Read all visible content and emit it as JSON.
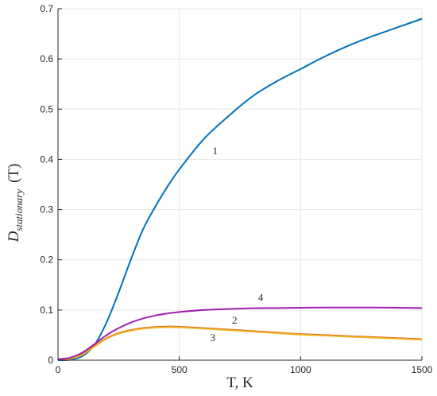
{
  "chart_data": {
    "type": "line",
    "xlabel": "T, K",
    "ylabel": {
      "main": "D",
      "subscript": "stationary",
      "suffix": "(T)"
    },
    "xlim": [
      0,
      1500
    ],
    "ylim": [
      0,
      0.7
    ],
    "xticks": [
      "0",
      "500",
      "1000",
      "1500"
    ],
    "yticks": [
      "0",
      "0.1",
      "0.2",
      "0.3",
      "0.4",
      "0.5",
      "0.6",
      "0.7"
    ],
    "grid": true,
    "series": [
      {
        "name": "1",
        "color": "#0072BD",
        "x": [
          0,
          50,
          100,
          150,
          200,
          250,
          300,
          350,
          400,
          450,
          500,
          600,
          700,
          800,
          900,
          1000,
          1100,
          1200,
          1300,
          1400,
          1500
        ],
        "values": [
          0,
          0.001,
          0.008,
          0.03,
          0.075,
          0.135,
          0.2,
          0.26,
          0.305,
          0.345,
          0.38,
          0.44,
          0.485,
          0.525,
          0.555,
          0.58,
          0.605,
          0.627,
          0.646,
          0.663,
          0.68
        ],
        "label_at": [
          648,
          0.41
        ]
      },
      {
        "name": "2",
        "color": "#D95319",
        "x": [
          0,
          50,
          100,
          150,
          200,
          250,
          300,
          350,
          400,
          450,
          500,
          600,
          700,
          800,
          900,
          1000,
          1100,
          1200,
          1300,
          1400,
          1500
        ],
        "values": [
          0.001,
          0.003,
          0.012,
          0.028,
          0.044,
          0.054,
          0.06,
          0.064,
          0.066,
          0.067,
          0.0665,
          0.064,
          0.061,
          0.058,
          0.055,
          0.052,
          0.05,
          0.048,
          0.046,
          0.044,
          0.042
        ],
        "label_at": [
          728,
          0.073
        ]
      },
      {
        "name": "3",
        "color": "#EDB120",
        "x": [
          0,
          50,
          100,
          150,
          200,
          250,
          300,
          350,
          400,
          450,
          500,
          600,
          700,
          800,
          900,
          1000,
          1100,
          1200,
          1300,
          1400,
          1500
        ],
        "values": [
          0.001,
          0.003,
          0.011,
          0.027,
          0.043,
          0.053,
          0.059,
          0.063,
          0.065,
          0.066,
          0.0655,
          0.063,
          0.06,
          0.057,
          0.054,
          0.051,
          0.049,
          0.047,
          0.045,
          0.043,
          0.041
        ],
        "label_at": [
          638,
          0.038
        ]
      },
      {
        "name": "4",
        "color": "#A020B0",
        "x": [
          0,
          50,
          100,
          150,
          200,
          250,
          300,
          350,
          400,
          450,
          500,
          600,
          700,
          800,
          900,
          1000,
          1100,
          1200,
          1300,
          1400,
          1500
        ],
        "values": [
          0.002,
          0.005,
          0.015,
          0.032,
          0.05,
          0.064,
          0.075,
          0.083,
          0.089,
          0.093,
          0.096,
          0.1,
          0.102,
          0.1035,
          0.104,
          0.1045,
          0.105,
          0.105,
          0.105,
          0.1045,
          0.104
        ],
        "label_at": [
          835,
          0.118
        ]
      }
    ]
  }
}
